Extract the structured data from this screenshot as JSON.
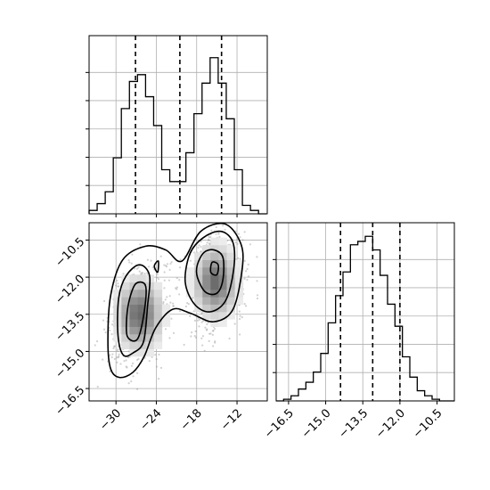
{
  "chart_data": {
    "type": "corner",
    "grid": true,
    "panels": [
      {
        "name": "hist-x",
        "type": "histogram-step",
        "xlim": [
          -34,
          -7.5
        ],
        "ylim": [
          0,
          1.05
        ],
        "bins_x": [
          -34.0,
          -32.8,
          -31.6,
          -30.4,
          -29.2,
          -28.0,
          -26.8,
          -25.6,
          -24.4,
          -23.2,
          -22.0,
          -20.8,
          -19.6,
          -18.4,
          -17.2,
          -16.0,
          -14.8,
          -13.6,
          -12.4,
          -11.2,
          -10.0,
          -8.8,
          -7.6
        ],
        "counts": [
          0.02,
          0.06,
          0.13,
          0.33,
          0.62,
          0.78,
          0.82,
          0.69,
          0.52,
          0.26,
          0.19,
          0.19,
          0.36,
          0.59,
          0.77,
          0.92,
          0.77,
          0.56,
          0.26,
          0.05,
          0.02,
          0.0
        ],
        "quantiles": [
          -27.1,
          -20.5,
          -14.3
        ],
        "x_ticks": [
          -30,
          -24,
          -18,
          -12
        ]
      },
      {
        "name": "hist-y",
        "type": "histogram-step",
        "xlim": [
          -17.0,
          -9.8
        ],
        "ylim": [
          0,
          1.05
        ],
        "bins_x": [
          -17.0,
          -16.7,
          -16.4,
          -16.1,
          -15.8,
          -15.5,
          -15.2,
          -14.9,
          -14.6,
          -14.3,
          -14.0,
          -13.7,
          -13.4,
          -13.1,
          -12.8,
          -12.5,
          -12.2,
          -11.9,
          -11.6,
          -11.3,
          -11.0,
          -10.7,
          -10.4,
          -10.1,
          -9.8
        ],
        "counts": [
          0.0,
          0.01,
          0.03,
          0.07,
          0.11,
          0.17,
          0.28,
          0.46,
          0.62,
          0.76,
          0.92,
          0.94,
          0.97,
          0.89,
          0.74,
          0.57,
          0.44,
          0.26,
          0.14,
          0.06,
          0.03,
          0.01,
          0.0,
          0.0
        ],
        "quantiles": [
          -14.4,
          -13.1,
          -12.0
        ],
        "x_ticks": [
          -16.5,
          -15.0,
          -13.5,
          -12.0,
          -10.5
        ],
        "x_tick_labels": [
          "−16.5",
          "−15.0",
          "−13.5",
          "−12.0",
          "−10.5"
        ]
      },
      {
        "name": "joint-2d",
        "type": "density-contour",
        "xlim": [
          -34,
          -7.5
        ],
        "ylim": [
          -17.0,
          -9.8
        ],
        "x_ticks": [
          -30,
          -24,
          -18,
          -12
        ],
        "x_tick_labels": [
          "−30",
          "−24",
          "−18",
          "−12"
        ],
        "y_ticks": [
          -16.5,
          -15.0,
          -13.5,
          -12.0,
          -10.5
        ],
        "y_tick_labels": [
          "−16.5",
          "−15.0",
          "−13.5",
          "−12.0",
          "−10.5"
        ],
        "modes": [
          {
            "x": -26.5,
            "y": -13.5,
            "weight": 0.5
          },
          {
            "x": -15.2,
            "y": -12.2,
            "weight": 0.5
          }
        ],
        "contours": [
          {
            "level": "outer",
            "points": [
              [
                -30.8,
                -15.7
              ],
              [
                -29.5,
                -16.05
              ],
              [
                -27.5,
                -15.85
              ],
              [
                -25.8,
                -15.2
              ],
              [
                -24.1,
                -14.05
              ],
              [
                -21.6,
                -13.3
              ],
              [
                -19.0,
                -13.45
              ],
              [
                -15.5,
                -13.8
              ],
              [
                -12.6,
                -13.3
              ],
              [
                -11.2,
                -11.6
              ],
              [
                -11.5,
                -10.6
              ],
              [
                -13.8,
                -9.85
              ],
              [
                -17.4,
                -10.15
              ],
              [
                -20.2,
                -11.35
              ],
              [
                -22.6,
                -10.9
              ],
              [
                -25.6,
                -10.75
              ],
              [
                -29.0,
                -11.3
              ],
              [
                -30.8,
                -12.75
              ],
              [
                -31.2,
                -14.6
              ]
            ]
          },
          {
            "level": "middle",
            "points": [
              [
                -28.9,
                -15.15
              ],
              [
                -27.4,
                -15.05
              ],
              [
                -25.9,
                -14.6
              ],
              [
                -25.3,
                -13.15
              ],
              [
                -25.0,
                -11.95
              ],
              [
                -26.5,
                -11.5
              ],
              [
                -28.5,
                -11.95
              ],
              [
                -29.6,
                -12.85
              ],
              [
                -29.7,
                -14.35
              ]
            ]
          },
          {
            "level": "middle",
            "points": [
              [
                -19.7,
                -12.2
              ],
              [
                -18.3,
                -13.1
              ],
              [
                -16.0,
                -13.4
              ],
              [
                -13.7,
                -12.95
              ],
              [
                -12.5,
                -11.7
              ],
              [
                -12.6,
                -10.6
              ],
              [
                -14.4,
                -10.15
              ],
              [
                -17.0,
                -10.4
              ],
              [
                -19.0,
                -11.05
              ]
            ]
          },
          {
            "level": "inner",
            "points": [
              [
                -28.3,
                -14.4
              ],
              [
                -26.8,
                -14.5
              ],
              [
                -25.8,
                -13.4
              ],
              [
                -25.6,
                -12.35
              ],
              [
                -27.0,
                -12.25
              ],
              [
                -27.9,
                -12.8
              ],
              [
                -28.4,
                -13.6
              ]
            ]
          },
          {
            "level": "inner",
            "points": [
              [
                -24.3,
                -11.55
              ],
              [
                -23.7,
                -11.35
              ],
              [
                -23.8,
                -11.8
              ]
            ]
          },
          {
            "level": "inner",
            "points": [
              [
                -17.9,
                -12.0
              ],
              [
                -16.7,
                -12.6
              ],
              [
                -15.0,
                -12.65
              ],
              [
                -14.1,
                -12.1
              ],
              [
                -14.1,
                -11.2
              ],
              [
                -15.4,
                -10.9
              ],
              [
                -16.9,
                -11.0
              ],
              [
                -17.9,
                -11.5
              ]
            ]
          },
          {
            "level": "core",
            "points": [
              [
                -15.9,
                -11.8
              ],
              [
                -15.0,
                -11.9
              ],
              [
                -14.8,
                -11.5
              ],
              [
                -15.7,
                -11.4
              ]
            ]
          }
        ]
      }
    ]
  }
}
